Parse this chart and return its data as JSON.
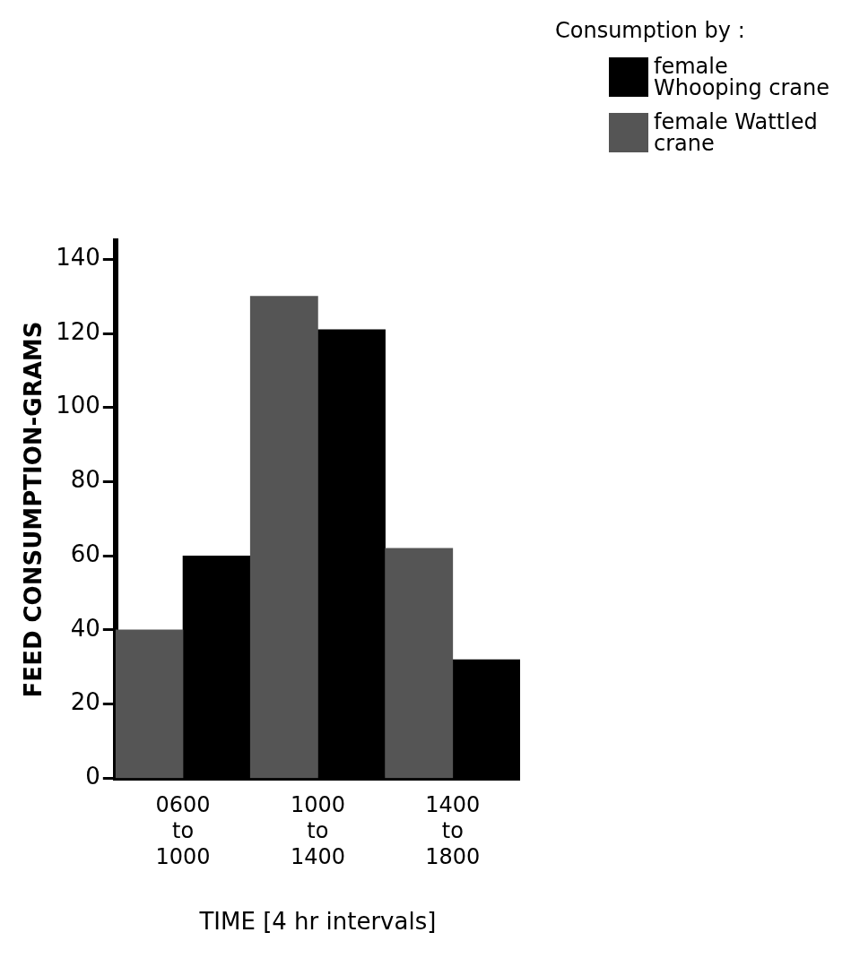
{
  "chart_data": {
    "type": "bar",
    "legend_title": "Consumption by :",
    "xlabel": "TIME [4 hr intervals]",
    "ylabel": "FEED CONSUMPTION-GRAMS",
    "categories": [
      "0600\nto\n1000",
      "1000\nto\n1400",
      "1400\nto\n1800"
    ],
    "series": [
      {
        "name": "female Wattled crane",
        "color": "#555555",
        "values": [
          40,
          130,
          62
        ]
      },
      {
        "name": "female Whooping crane",
        "color": "#000000",
        "values": [
          60,
          121,
          32
        ]
      }
    ],
    "ylim": [
      0,
      145
    ],
    "yticks": [
      0,
      20,
      40,
      60,
      80,
      100,
      120,
      140
    ],
    "grid": false,
    "legend": "top right"
  }
}
